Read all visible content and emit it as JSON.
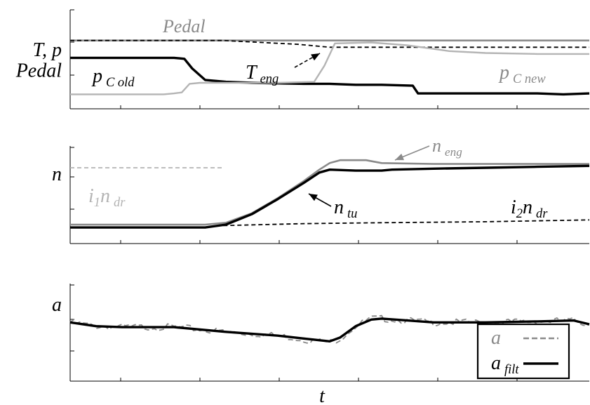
{
  "colors": {
    "black": "#000000",
    "gray": "#8a8a8a",
    "light_gray": "#b4b4b4",
    "white": "#ffffff"
  },
  "chart_data": [
    {
      "type": "line",
      "ylabel": "T, p Pedal",
      "ylabel_lines": [
        "T, p",
        "Pedal"
      ],
      "xlim": [
        0,
        1
      ],
      "ylim": [
        0,
        1
      ],
      "grid": false,
      "annotations": [
        {
          "id": "pedal",
          "base": "Pedal",
          "sub": "",
          "color": "#8a8a8a"
        },
        {
          "id": "p_c_old",
          "base": "p",
          "sub": "C old",
          "color": "#000000"
        },
        {
          "id": "t_eng",
          "base": "T",
          "sub": "eng",
          "color": "#000000"
        },
        {
          "id": "p_c_new",
          "base": "p",
          "sub": "C new",
          "color": "#8a8a8a"
        }
      ],
      "series": [
        {
          "id": "pedal",
          "style": "solid",
          "color": "#8a8a8a",
          "x": [
            0.0,
            1.0
          ],
          "y": [
            0.71,
            0.71
          ]
        },
        {
          "id": "t_eng",
          "style": "dashed",
          "color": "#000000",
          "x": [
            0.0,
            0.295,
            0.44,
            0.5,
            0.6,
            0.8,
            1.0
          ],
          "y": [
            0.71,
            0.71,
            0.67,
            0.64,
            0.64,
            0.64,
            0.64
          ]
        },
        {
          "id": "p_c_old",
          "style": "solid",
          "color": "#000000",
          "x": [
            0.0,
            0.2,
            0.22,
            0.235,
            0.26,
            0.3,
            0.35,
            0.45,
            0.5,
            0.55,
            0.6,
            0.66,
            0.67,
            0.7,
            0.8,
            0.9,
            0.95,
            1.0
          ],
          "y": [
            0.53,
            0.53,
            0.52,
            0.42,
            0.3,
            0.28,
            0.27,
            0.26,
            0.26,
            0.25,
            0.25,
            0.24,
            0.16,
            0.16,
            0.16,
            0.16,
            0.15,
            0.16
          ]
        },
        {
          "id": "p_c_new",
          "style": "solid",
          "color": "#b4b4b4",
          "x": [
            0.0,
            0.18,
            0.2,
            0.215,
            0.23,
            0.25,
            0.3,
            0.4,
            0.47,
            0.49,
            0.51,
            0.58,
            0.65,
            0.73,
            0.8,
            0.9,
            1.0
          ],
          "y": [
            0.15,
            0.15,
            0.16,
            0.17,
            0.26,
            0.27,
            0.27,
            0.27,
            0.28,
            0.45,
            0.68,
            0.69,
            0.66,
            0.6,
            0.58,
            0.57,
            0.57
          ]
        }
      ]
    },
    {
      "type": "line",
      "ylabel": "n",
      "ylabel_lines": [
        "n"
      ],
      "xlim": [
        0,
        1
      ],
      "ylim": [
        0,
        1
      ],
      "grid": false,
      "annotations": [
        {
          "id": "n_eng",
          "base": "n",
          "sub": "eng",
          "color": "#8a8a8a"
        },
        {
          "id": "i1_n_dr",
          "base": "i",
          "sub1": "1",
          "base2": "n",
          "sub": "dr",
          "color": "#b4b4b4"
        },
        {
          "id": "n_tu",
          "base": "n",
          "sub": "tu",
          "color": "#000000"
        },
        {
          "id": "i2_n_dr",
          "base": "i",
          "sub1": "2",
          "base2": "n",
          "sub": "dr",
          "color": "#000000"
        }
      ],
      "series": [
        {
          "id": "i1_n_dr",
          "style": "dashed",
          "color": "#b4b4b4",
          "x": [
            0.0,
            0.295
          ],
          "y": [
            0.8,
            0.8
          ]
        },
        {
          "id": "i2_n_dr",
          "style": "dashed",
          "color": "#000000",
          "x": [
            0.295,
            0.45,
            0.6,
            0.8,
            1.0
          ],
          "y": [
            0.19,
            0.21,
            0.22,
            0.23,
            0.25
          ]
        },
        {
          "id": "n_eng",
          "style": "solid",
          "color": "#8a8a8a",
          "x": [
            0.0,
            0.26,
            0.3,
            0.35,
            0.4,
            0.45,
            0.48,
            0.5,
            0.52,
            0.57,
            0.6,
            0.7,
            0.8,
            0.9,
            1.0
          ],
          "y": [
            0.2,
            0.2,
            0.22,
            0.32,
            0.48,
            0.66,
            0.78,
            0.85,
            0.88,
            0.88,
            0.85,
            0.84,
            0.84,
            0.84,
            0.84
          ]
        },
        {
          "id": "n_tu",
          "style": "solid",
          "color": "#000000",
          "x": [
            0.0,
            0.26,
            0.3,
            0.35,
            0.4,
            0.45,
            0.48,
            0.5,
            0.55,
            0.6,
            0.62,
            0.7,
            0.8,
            0.9,
            1.0
          ],
          "y": [
            0.17,
            0.17,
            0.2,
            0.31,
            0.47,
            0.64,
            0.75,
            0.78,
            0.77,
            0.77,
            0.78,
            0.79,
            0.8,
            0.81,
            0.82
          ]
        }
      ]
    },
    {
      "type": "line",
      "ylabel": "a",
      "ylabel_lines": [
        "a"
      ],
      "xlabel": "t",
      "xlim": [
        0,
        1
      ],
      "ylim": [
        0,
        1
      ],
      "grid": false,
      "legend": {
        "position": "bottom-right",
        "entries": [
          {
            "id": "a",
            "base": "a",
            "sub": "",
            "style": "dashed",
            "color": "#8a8a8a"
          },
          {
            "id": "a_filt",
            "base": "a",
            "sub": "filt",
            "style": "solid",
            "color": "#000000"
          }
        ]
      },
      "series": [
        {
          "id": "a",
          "style": "dashed",
          "color": "#8a8a8a",
          "noise": true,
          "x": [
            0.0,
            0.05,
            0.1,
            0.2,
            0.3,
            0.4,
            0.45,
            0.5,
            0.52,
            0.55,
            0.58,
            0.6,
            0.65,
            0.7,
            0.8,
            0.9,
            0.97,
            1.0
          ],
          "y": [
            0.62,
            0.58,
            0.57,
            0.57,
            0.52,
            0.48,
            0.44,
            0.41,
            0.45,
            0.58,
            0.66,
            0.66,
            0.64,
            0.62,
            0.62,
            0.63,
            0.64,
            0.6
          ]
        },
        {
          "id": "a_filt",
          "style": "solid",
          "color": "#000000",
          "x": [
            0.0,
            0.05,
            0.1,
            0.2,
            0.3,
            0.4,
            0.45,
            0.5,
            0.52,
            0.55,
            0.58,
            0.6,
            0.65,
            0.7,
            0.8,
            0.9,
            0.97,
            1.0
          ],
          "y": [
            0.62,
            0.58,
            0.57,
            0.57,
            0.52,
            0.48,
            0.45,
            0.42,
            0.46,
            0.58,
            0.65,
            0.66,
            0.64,
            0.62,
            0.62,
            0.63,
            0.64,
            0.6
          ]
        }
      ]
    }
  ]
}
